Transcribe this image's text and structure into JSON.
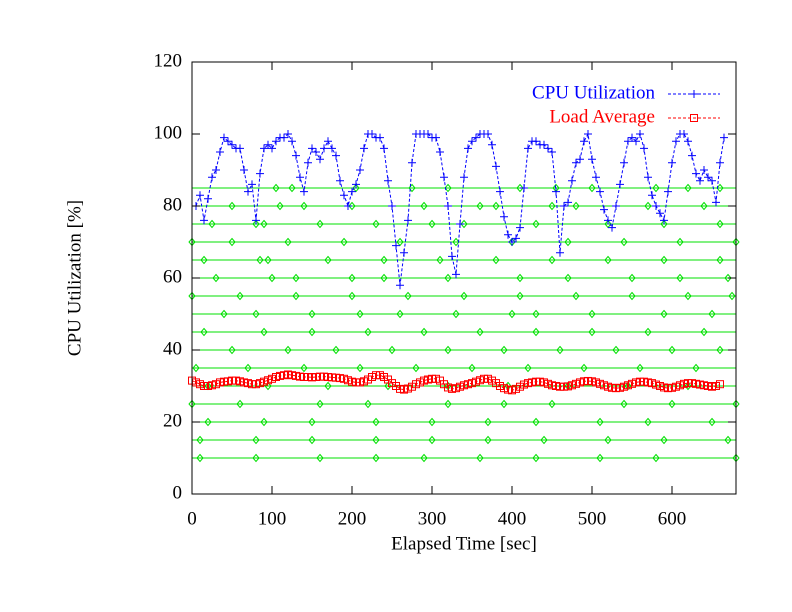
{
  "chart_data": {
    "type": "line",
    "xlabel": "Elapsed Time [sec]",
    "ylabel": "CPU Utilization [%]",
    "xlim": [
      0,
      680
    ],
    "ylim": [
      0,
      120
    ],
    "xticks": [
      0,
      100,
      200,
      300,
      400,
      500,
      600
    ],
    "yticks": [
      0,
      20,
      40,
      60,
      80,
      100,
      120
    ],
    "legend": "top right",
    "series": [
      {
        "name": "CPU Utilization",
        "color": "#0000ff",
        "marker": "plus",
        "dashed": true,
        "x": [
          5,
          10,
          15,
          20,
          25,
          30,
          35,
          40,
          45,
          50,
          55,
          60,
          65,
          70,
          75,
          80,
          85,
          90,
          95,
          100,
          105,
          110,
          115,
          120,
          125,
          130,
          135,
          140,
          145,
          150,
          155,
          160,
          165,
          170,
          175,
          180,
          185,
          190,
          195,
          200,
          205,
          210,
          215,
          220,
          225,
          230,
          235,
          240,
          245,
          250,
          255,
          260,
          265,
          270,
          275,
          280,
          285,
          290,
          295,
          300,
          305,
          310,
          315,
          320,
          325,
          330,
          335,
          340,
          345,
          350,
          355,
          360,
          365,
          370,
          375,
          380,
          385,
          390,
          395,
          400,
          405,
          410,
          415,
          420,
          425,
          430,
          435,
          440,
          445,
          450,
          455,
          460,
          465,
          470,
          475,
          480,
          485,
          490,
          495,
          500,
          505,
          510,
          515,
          520,
          525,
          530,
          535,
          540,
          545,
          550,
          555,
          560,
          565,
          570,
          575,
          580,
          585,
          590,
          595,
          600,
          605,
          610,
          615,
          620,
          625,
          630,
          635,
          640,
          645,
          650,
          655,
          660,
          665
        ],
        "values": [
          80,
          83,
          76,
          82,
          88,
          90,
          95,
          99,
          98,
          97,
          96,
          96,
          90,
          84,
          86,
          76,
          89,
          96,
          97,
          96,
          98,
          99,
          99,
          100,
          98,
          94,
          88,
          84,
          92,
          96,
          95,
          93,
          96,
          98,
          96,
          94,
          87,
          83,
          80,
          84,
          86,
          90,
          96,
          100,
          100,
          99,
          99,
          96,
          87,
          80,
          69,
          58,
          67,
          76,
          92,
          100,
          100,
          100,
          100,
          99,
          99,
          95,
          88,
          80,
          66,
          61,
          75,
          88,
          96,
          98,
          99,
          100,
          100,
          100,
          97,
          91,
          84,
          77,
          72,
          70,
          71,
          74,
          85,
          96,
          98,
          98,
          97,
          97,
          96,
          95,
          84,
          67,
          80,
          81,
          87,
          92,
          93,
          98,
          100,
          93,
          88,
          84,
          79,
          76,
          74,
          80,
          86,
          92,
          98,
          99,
          98,
          100,
          96,
          88,
          83,
          80,
          78,
          76,
          84,
          92,
          98,
          100,
          100,
          98,
          94,
          89,
          87,
          90,
          88,
          87,
          81,
          92,
          99
        ]
      },
      {
        "name": "Load Average",
        "color": "#ff0000",
        "marker": "square",
        "dashed": true,
        "x": [
          0,
          5,
          10,
          15,
          20,
          25,
          30,
          35,
          40,
          45,
          50,
          55,
          60,
          65,
          70,
          75,
          80,
          85,
          90,
          95,
          100,
          105,
          110,
          115,
          120,
          125,
          130,
          135,
          140,
          145,
          150,
          155,
          160,
          165,
          170,
          175,
          180,
          185,
          190,
          195,
          200,
          205,
          210,
          215,
          220,
          225,
          230,
          235,
          240,
          245,
          250,
          255,
          260,
          265,
          270,
          275,
          280,
          285,
          290,
          295,
          300,
          305,
          310,
          315,
          320,
          325,
          330,
          335,
          340,
          345,
          350,
          355,
          360,
          365,
          370,
          375,
          380,
          385,
          390,
          395,
          400,
          405,
          410,
          415,
          420,
          425,
          430,
          435,
          440,
          445,
          450,
          455,
          460,
          465,
          470,
          475,
          480,
          485,
          490,
          495,
          500,
          505,
          510,
          515,
          520,
          525,
          530,
          535,
          540,
          545,
          550,
          555,
          560,
          565,
          570,
          575,
          580,
          585,
          590,
          595,
          600,
          605,
          610,
          615,
          620,
          625,
          630,
          635,
          640,
          645,
          650,
          655,
          660
        ],
        "values": [
          31.5,
          31,
          30.5,
          30,
          30,
          30.2,
          30.5,
          31,
          31.2,
          31.3,
          31.5,
          31.5,
          31.3,
          31,
          30.8,
          30.5,
          30.5,
          30.8,
          31.2,
          31.6,
          32,
          32.5,
          32.8,
          33,
          33.2,
          33,
          32.8,
          32.6,
          32.5,
          32.5,
          32.4,
          32.5,
          32.6,
          32.6,
          32.5,
          32.4,
          32.3,
          32.2,
          32,
          31.6,
          31.2,
          31,
          31,
          31.3,
          31.8,
          32.5,
          33,
          33,
          32.5,
          31.8,
          30.8,
          30,
          29.2,
          29,
          29.3,
          29.8,
          30.5,
          31,
          31.5,
          31.8,
          32,
          32,
          31.5,
          30.5,
          29.6,
          29.2,
          29.4,
          29.8,
          30.2,
          30.5,
          30.8,
          31.2,
          31.6,
          32,
          32,
          31.5,
          30.8,
          30,
          29.4,
          29,
          28.8,
          29.2,
          29.8,
          30.4,
          30.8,
          31,
          31.2,
          31.2,
          31,
          30.6,
          30.2,
          30,
          29.8,
          29.8,
          29.9,
          30.2,
          30.6,
          31,
          31.3,
          31.4,
          31.3,
          31,
          30.6,
          30.2,
          29.8,
          29.5,
          29.4,
          29.5,
          29.8,
          30.2,
          30.6,
          31,
          31.2,
          31.2,
          31,
          30.8,
          30.4,
          30,
          29.6,
          29.4,
          29.5,
          29.8,
          30.2,
          30.6,
          30.8,
          30.8,
          30.6,
          30.4,
          30.2,
          30,
          29.8,
          30,
          30.5
        ]
      },
      {
        "color": "#00e000",
        "marker": "diamond",
        "x": [
          105,
          125,
          205,
          275,
          320,
          410,
          455,
          500,
          580,
          620,
          660
        ],
        "values": [
          85,
          85,
          85,
          85,
          85,
          85,
          85,
          85,
          85,
          85,
          85
        ]
      },
      {
        "color": "#00e000",
        "marker": "diamond",
        "x": [
          50,
          110,
          140,
          200,
          290,
          360,
          380,
          450,
          480,
          570,
          640
        ],
        "values": [
          80,
          80,
          80,
          80,
          80,
          80,
          80,
          80,
          80,
          80,
          80
        ]
      },
      {
        "color": "#00e000",
        "marker": "diamond",
        "x": [
          25,
          80,
          90,
          160,
          230,
          300,
          340,
          430,
          520,
          590,
          660
        ],
        "values": [
          75,
          75,
          75,
          75,
          75,
          75,
          75,
          75,
          75,
          75,
          75
        ]
      },
      {
        "color": "#00e000",
        "marker": "diamond",
        "x": [
          0,
          50,
          120,
          190,
          260,
          330,
          400,
          470,
          540,
          610,
          680
        ],
        "values": [
          70,
          70,
          70,
          70,
          70,
          70,
          70,
          70,
          70,
          70,
          70
        ]
      },
      {
        "color": "#00e000",
        "marker": "diamond",
        "x": [
          15,
          85,
          95,
          170,
          240,
          310,
          380,
          450,
          520,
          590,
          660
        ],
        "values": [
          65,
          65,
          65,
          65,
          65,
          65,
          65,
          65,
          65,
          65,
          65
        ]
      },
      {
        "color": "#00e000",
        "marker": "diamond",
        "x": [
          30,
          100,
          130,
          200,
          240,
          320,
          410,
          470,
          550,
          610,
          670
        ],
        "values": [
          60,
          60,
          60,
          60,
          60,
          60,
          60,
          60,
          60,
          60,
          60
        ]
      },
      {
        "color": "#00e000",
        "marker": "diamond",
        "x": [
          0,
          60,
          130,
          200,
          270,
          340,
          410,
          480,
          550,
          620,
          675
        ],
        "values": [
          55,
          55,
          55,
          55,
          55,
          55,
          55,
          55,
          55,
          55,
          55
        ]
      },
      {
        "color": "#00e000",
        "marker": "diamond",
        "x": [
          40,
          80,
          150,
          210,
          260,
          330,
          400,
          430,
          500,
          590,
          650
        ],
        "values": [
          50,
          50,
          50,
          50,
          50,
          50,
          50,
          50,
          50,
          50,
          50
        ]
      },
      {
        "color": "#00e000",
        "marker": "diamond",
        "x": [
          15,
          90,
          150,
          220,
          290,
          360,
          430,
          500,
          570,
          640
        ],
        "values": [
          45,
          45,
          45,
          45,
          45,
          45,
          45,
          45,
          45,
          45
        ]
      },
      {
        "color": "#00e000",
        "marker": "diamond",
        "x": [
          50,
          120,
          180,
          250,
          320,
          390,
          460,
          530,
          600,
          660
        ],
        "values": [
          40,
          40,
          40,
          40,
          40,
          40,
          40,
          40,
          40,
          40
        ]
      },
      {
        "color": "#00e000",
        "marker": "diamond",
        "x": [
          5,
          70,
          140,
          210,
          280,
          350,
          420,
          490,
          560,
          630
        ],
        "values": [
          35,
          35,
          35,
          35,
          35,
          35,
          35,
          35,
          35,
          35
        ]
      },
      {
        "color": "#00e000",
        "marker": "diamond",
        "x": [
          20,
          95,
          170,
          245,
          320,
          395,
          470,
          545,
          620
        ],
        "values": [
          30,
          30,
          30,
          30,
          30,
          30,
          30,
          30,
          30
        ]
      },
      {
        "color": "#00e000",
        "marker": "diamond",
        "x": [
          0,
          60,
          160,
          220,
          320,
          390,
          450,
          540,
          600,
          680
        ],
        "values": [
          25,
          25,
          25,
          25,
          25,
          25,
          25,
          25,
          25,
          25
        ]
      },
      {
        "color": "#00e000",
        "marker": "diamond",
        "x": [
          20,
          90,
          150,
          230,
          300,
          370,
          430,
          510,
          570,
          650
        ],
        "values": [
          20,
          20,
          20,
          20,
          20,
          20,
          20,
          20,
          20,
          20
        ]
      },
      {
        "color": "#00e000",
        "marker": "diamond",
        "x": [
          10,
          80,
          150,
          230,
          300,
          370,
          440,
          520,
          590,
          670
        ],
        "values": [
          15,
          15,
          15,
          15,
          15,
          15,
          15,
          15,
          15,
          15
        ]
      },
      {
        "color": "#00e000",
        "marker": "diamond",
        "x": [
          10,
          80,
          160,
          230,
          290,
          360,
          430,
          510,
          580,
          680
        ],
        "values": [
          10,
          10,
          10,
          10,
          10,
          10,
          10,
          10,
          10,
          10
        ]
      }
    ]
  }
}
